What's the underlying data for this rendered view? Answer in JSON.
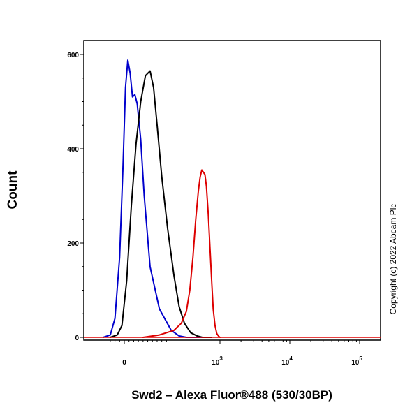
{
  "chart_data": {
    "type": "line",
    "title": "",
    "xlabel": "Swd2 – Alexa Fluor®488 (530/30BP)",
    "ylabel": "Count",
    "x_scale": "biexponential",
    "ylim": [
      0,
      650
    ],
    "grid": false,
    "legend": "none",
    "y_ticks": [
      {
        "value": 0,
        "label": "0"
      },
      {
        "value": 200,
        "label": "200"
      },
      {
        "value": 400,
        "label": "400"
      },
      {
        "value": 600,
        "label": "600"
      }
    ],
    "x_ticks": [
      {
        "value": 0,
        "base": "0",
        "exp": ""
      },
      {
        "value": 1000,
        "base": "10",
        "exp": "3"
      },
      {
        "value": 10000,
        "base": "10",
        "exp": "4"
      },
      {
        "value": 100000,
        "base": "10",
        "exp": "5"
      }
    ],
    "series": [
      {
        "color": "#0000cc",
        "x": [
          -90,
          -60,
          -40,
          -20,
          -5,
          5,
          15,
          25,
          35,
          45,
          55,
          70,
          85,
          110,
          150,
          200,
          260,
          330,
          420,
          550
        ],
        "y": [
          0,
          5,
          40,
          170,
          370,
          530,
          588,
          560,
          510,
          515,
          495,
          420,
          300,
          150,
          60,
          15,
          3,
          0,
          0,
          0
        ]
      },
      {
        "color": "#000000",
        "x": [
          -60,
          -30,
          -10,
          10,
          30,
          50,
          70,
          90,
          110,
          125,
          140,
          160,
          185,
          220,
          260,
          310,
          380,
          470,
          560,
          650,
          760
        ],
        "y": [
          0,
          5,
          25,
          120,
          280,
          410,
          500,
          555,
          565,
          530,
          450,
          340,
          230,
          130,
          65,
          30,
          10,
          3,
          0,
          0,
          0
        ]
      },
      {
        "color": "#dd0000",
        "x": [
          80,
          150,
          220,
          280,
          330,
          370,
          410,
          450,
          490,
          520,
          550,
          580,
          610,
          640,
          680,
          720,
          760,
          800,
          850,
          900,
          960,
          1000
        ],
        "y": [
          0,
          5,
          15,
          30,
          55,
          100,
          170,
          250,
          310,
          340,
          355,
          350,
          345,
          320,
          260,
          190,
          120,
          60,
          25,
          8,
          2,
          0
        ]
      }
    ]
  },
  "copyright": "Copyright (c) 2022 Abcam Plc"
}
